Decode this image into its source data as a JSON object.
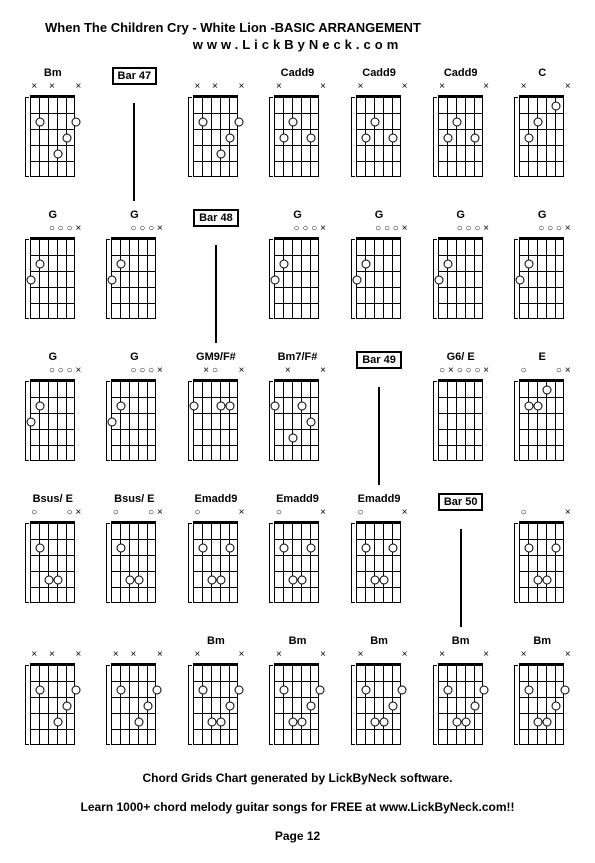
{
  "title": "When The Children Cry - White Lion -BASIC ARRANGEMENT",
  "website": "www.LickByNeck.com",
  "footer_line1": "Chord Grids Chart generated by LickByNeck software.",
  "footer_line2": "Learn 1000+ chord melody guitar songs for FREE at www.LickByNeck.com!!",
  "page": "Page 12",
  "grid_cols": 7,
  "grid_rows": 5,
  "fret_count": 5,
  "string_count": 6,
  "diagram_style": {
    "string_spacing": 9,
    "fret_spacing": 16,
    "dot_size": 7,
    "marker_x": "×",
    "marker_o": "○"
  },
  "cells": [
    {
      "type": "chord",
      "label": "Bm",
      "markers": [
        "x",
        "",
        "x",
        "",
        "",
        "x"
      ],
      "dots": [
        [
          2,
          2
        ],
        [
          4,
          4
        ],
        [
          5,
          3
        ],
        [
          6,
          2
        ]
      ],
      "nut": true,
      "start": 1
    },
    {
      "type": "bar",
      "label": "Bar 47"
    },
    {
      "type": "chord",
      "label": "",
      "markers": [
        "x",
        "",
        "x",
        "",
        "",
        "x"
      ],
      "dots": [
        [
          2,
          2
        ],
        [
          4,
          4
        ],
        [
          5,
          3
        ],
        [
          6,
          2
        ]
      ],
      "nut": true,
      "start": 1
    },
    {
      "type": "chord",
      "label": "Cadd9",
      "markers": [
        "x",
        "",
        "",
        "",
        "",
        "x"
      ],
      "dots": [
        [
          2,
          3
        ],
        [
          3,
          2
        ],
        [
          5,
          3
        ]
      ],
      "nut": true,
      "start": 1
    },
    {
      "type": "chord",
      "label": "Cadd9",
      "markers": [
        "x",
        "",
        "",
        "",
        "",
        "x"
      ],
      "dots": [
        [
          2,
          3
        ],
        [
          3,
          2
        ],
        [
          5,
          3
        ]
      ],
      "nut": true,
      "start": 1
    },
    {
      "type": "chord",
      "label": "Cadd9",
      "markers": [
        "x",
        "",
        "",
        "",
        "",
        "x"
      ],
      "dots": [
        [
          2,
          3
        ],
        [
          3,
          2
        ],
        [
          5,
          3
        ]
      ],
      "nut": true,
      "start": 1
    },
    {
      "type": "chord",
      "label": "C",
      "markers": [
        "x",
        "",
        "",
        "",
        "",
        "x"
      ],
      "dots": [
        [
          2,
          3
        ],
        [
          3,
          2
        ],
        [
          5,
          1
        ]
      ],
      "nut": true,
      "start": 1
    },
    {
      "type": "chord",
      "label": "G",
      "markers": [
        "",
        "",
        "o",
        "o",
        "o",
        "x"
      ],
      "dots": [
        [
          1,
          3
        ],
        [
          2,
          2
        ]
      ],
      "nut": true,
      "start": 1
    },
    {
      "type": "chord",
      "label": "G",
      "markers": [
        "",
        "",
        "o",
        "o",
        "o",
        "x"
      ],
      "dots": [
        [
          1,
          3
        ],
        [
          2,
          2
        ]
      ],
      "nut": true,
      "start": 1
    },
    {
      "type": "bar",
      "label": "Bar 48"
    },
    {
      "type": "chord",
      "label": "G",
      "markers": [
        "",
        "",
        "o",
        "o",
        "o",
        "x"
      ],
      "dots": [
        [
          1,
          3
        ],
        [
          2,
          2
        ]
      ],
      "nut": true,
      "start": 1
    },
    {
      "type": "chord",
      "label": "G",
      "markers": [
        "",
        "",
        "o",
        "o",
        "o",
        "x"
      ],
      "dots": [
        [
          1,
          3
        ],
        [
          2,
          2
        ]
      ],
      "nut": true,
      "start": 1
    },
    {
      "type": "chord",
      "label": "G",
      "markers": [
        "",
        "",
        "o",
        "o",
        "o",
        "x"
      ],
      "dots": [
        [
          1,
          3
        ],
        [
          2,
          2
        ]
      ],
      "nut": true,
      "start": 1
    },
    {
      "type": "chord",
      "label": "G",
      "markers": [
        "",
        "",
        "o",
        "o",
        "o",
        "x"
      ],
      "dots": [
        [
          1,
          3
        ],
        [
          2,
          2
        ]
      ],
      "nut": true,
      "start": 1
    },
    {
      "type": "chord",
      "label": "G",
      "markers": [
        "",
        "",
        "o",
        "o",
        "o",
        "x"
      ],
      "dots": [
        [
          1,
          3
        ],
        [
          2,
          2
        ]
      ],
      "nut": true,
      "start": 1
    },
    {
      "type": "chord",
      "label": "G",
      "markers": [
        "",
        "",
        "o",
        "o",
        "o",
        "x"
      ],
      "dots": [
        [
          1,
          3
        ],
        [
          2,
          2
        ]
      ],
      "nut": true,
      "start": 1
    },
    {
      "type": "chord",
      "label": "GM9/F#",
      "markers": [
        "",
        "x",
        "o",
        "",
        "",
        "x"
      ],
      "dots": [
        [
          1,
          2
        ],
        [
          4,
          2
        ],
        [
          5,
          2
        ]
      ],
      "nut": true,
      "start": 1
    },
    {
      "type": "chord",
      "label": "Bm7/F#",
      "markers": [
        "",
        "x",
        "",
        "",
        "",
        "x"
      ],
      "dots": [
        [
          1,
          2
        ],
        [
          3,
          4
        ],
        [
          4,
          2
        ],
        [
          5,
          3
        ]
      ],
      "nut": true,
      "start": 1
    },
    {
      "type": "bar",
      "label": "Bar 49"
    },
    {
      "type": "chord",
      "label": "G6/ E",
      "markers": [
        "o",
        "x",
        "o",
        "o",
        "o",
        "x"
      ],
      "dots": [],
      "nut": true,
      "start": 1
    },
    {
      "type": "chord",
      "label": "E",
      "markers": [
        "o",
        "",
        "",
        "",
        "o",
        "x"
      ],
      "dots": [
        [
          2,
          2
        ],
        [
          3,
          2
        ],
        [
          4,
          1
        ]
      ],
      "nut": true,
      "start": 1
    },
    {
      "type": "chord",
      "label": "Bsus/ E",
      "markers": [
        "o",
        "",
        "",
        "",
        "o",
        "x"
      ],
      "dots": [
        [
          2,
          2
        ],
        [
          3,
          4
        ],
        [
          4,
          4
        ]
      ],
      "nut": true,
      "start": 1
    },
    {
      "type": "chord",
      "label": "Bsus/ E",
      "markers": [
        "o",
        "",
        "",
        "",
        "o",
        "x"
      ],
      "dots": [
        [
          2,
          2
        ],
        [
          3,
          4
        ],
        [
          4,
          4
        ]
      ],
      "nut": true,
      "start": 1
    },
    {
      "type": "chord",
      "label": "Emadd9",
      "markers": [
        "o",
        "",
        "",
        "",
        "",
        "x"
      ],
      "dots": [
        [
          2,
          2
        ],
        [
          3,
          4
        ],
        [
          4,
          4
        ],
        [
          5,
          2
        ]
      ],
      "nut": true,
      "start": 1
    },
    {
      "type": "chord",
      "label": "Emadd9",
      "markers": [
        "o",
        "",
        "",
        "",
        "",
        "x"
      ],
      "dots": [
        [
          2,
          2
        ],
        [
          3,
          4
        ],
        [
          4,
          4
        ],
        [
          5,
          2
        ]
      ],
      "nut": true,
      "start": 1
    },
    {
      "type": "chord",
      "label": "Emadd9",
      "markers": [
        "o",
        "",
        "",
        "",
        "",
        "x"
      ],
      "dots": [
        [
          2,
          2
        ],
        [
          3,
          4
        ],
        [
          4,
          4
        ],
        [
          5,
          2
        ]
      ],
      "nut": true,
      "start": 1
    },
    {
      "type": "bar",
      "label": "Bar 50"
    },
    {
      "type": "chord",
      "label": "",
      "markers": [
        "o",
        "",
        "",
        "",
        "",
        "x"
      ],
      "dots": [
        [
          2,
          2
        ],
        [
          3,
          4
        ],
        [
          4,
          4
        ],
        [
          5,
          2
        ]
      ],
      "nut": true,
      "start": 1
    },
    {
      "type": "chord",
      "label": "",
      "markers": [
        "x",
        "",
        "x",
        "",
        "",
        "x"
      ],
      "dots": [
        [
          2,
          2
        ],
        [
          4,
          4
        ],
        [
          5,
          3
        ],
        [
          6,
          2
        ]
      ],
      "nut": true,
      "start": 1
    },
    {
      "type": "chord",
      "label": "",
      "markers": [
        "x",
        "",
        "x",
        "",
        "",
        "x"
      ],
      "dots": [
        [
          2,
          2
        ],
        [
          4,
          4
        ],
        [
          5,
          3
        ],
        [
          6,
          2
        ]
      ],
      "nut": true,
      "start": 1
    },
    {
      "type": "chord",
      "label": "Bm",
      "markers": [
        "x",
        "",
        "",
        "",
        "",
        "x"
      ],
      "dots": [
        [
          2,
          2
        ],
        [
          3,
          4
        ],
        [
          4,
          4
        ],
        [
          5,
          3
        ],
        [
          6,
          2
        ]
      ],
      "nut": true,
      "start": 1
    },
    {
      "type": "chord",
      "label": "Bm",
      "markers": [
        "x",
        "",
        "",
        "",
        "",
        "x"
      ],
      "dots": [
        [
          2,
          2
        ],
        [
          3,
          4
        ],
        [
          4,
          4
        ],
        [
          5,
          3
        ],
        [
          6,
          2
        ]
      ],
      "nut": true,
      "start": 1
    },
    {
      "type": "chord",
      "label": "Bm",
      "markers": [
        "x",
        "",
        "",
        "",
        "",
        "x"
      ],
      "dots": [
        [
          2,
          2
        ],
        [
          3,
          4
        ],
        [
          4,
          4
        ],
        [
          5,
          3
        ],
        [
          6,
          2
        ]
      ],
      "nut": true,
      "start": 1
    },
    {
      "type": "chord",
      "label": "Bm",
      "markers": [
        "x",
        "",
        "",
        "",
        "",
        "x"
      ],
      "dots": [
        [
          2,
          2
        ],
        [
          3,
          4
        ],
        [
          4,
          4
        ],
        [
          5,
          3
        ],
        [
          6,
          2
        ]
      ],
      "nut": true,
      "start": 1
    },
    {
      "type": "chord",
      "label": "Bm",
      "markers": [
        "x",
        "",
        "",
        "",
        "",
        "x"
      ],
      "dots": [
        [
          2,
          2
        ],
        [
          3,
          4
        ],
        [
          4,
          4
        ],
        [
          5,
          3
        ],
        [
          6,
          2
        ]
      ],
      "nut": true,
      "start": 1
    }
  ]
}
